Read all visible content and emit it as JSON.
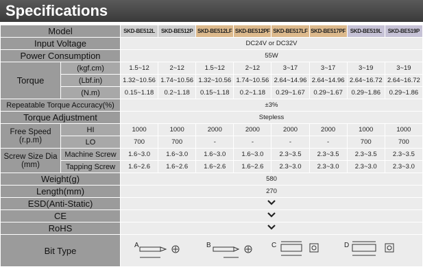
{
  "title": "Specifications",
  "table": {
    "model": {
      "label": "Model",
      "values": [
        "SKD-BE512L",
        "SKD-BE512P",
        "SKD-BE512LF",
        "SKD-BE512PF",
        "SKD-BE517LF",
        "SKD-BE517PF",
        "SKD-BE519L",
        "SKD-BE519P"
      ]
    },
    "input_voltage": {
      "label": "Input Voltage",
      "value": "DC24V  or  DC32V"
    },
    "power": {
      "label": "Power Consumption",
      "value": "55W"
    },
    "torque": {
      "label": "Torque",
      "rows": [
        {
          "unit": "(kgf.cm)",
          "values": [
            "1.5~12",
            "2~12",
            "1.5~12",
            "2~12",
            "3~17",
            "3~17",
            "3~19",
            "3~19"
          ]
        },
        {
          "unit": "(Lbf.in)",
          "values": [
            "1.32~10.56",
            "1.74~10.56",
            "1.32~10.56",
            "1.74~10.56",
            "2.64~14.96",
            "2.64~14.96",
            "2.64~16.72",
            "2.64~16.72"
          ]
        },
        {
          "unit": "(N.m)",
          "values": [
            "0.15~1.18",
            "0.2~1.18",
            "0.15~1.18",
            "0.2~1.18",
            "0.29~1.67",
            "0.29~1.67",
            "0.29~1.86",
            "0.29~1.86"
          ]
        }
      ]
    },
    "repeatable": {
      "label": "Repeatable Torque Accuracy(%)",
      "value": "±3%"
    },
    "adjustment": {
      "label": "Torque Adjustment",
      "value": "Stepless"
    },
    "free_speed": {
      "label": "Free Speed",
      "unit": "(r.p.m)",
      "rows": [
        {
          "name": "HI",
          "values": [
            1000,
            1000,
            2000,
            2000,
            2000,
            2000,
            1000,
            1000
          ]
        },
        {
          "name": "LO",
          "values": [
            700,
            700,
            "-",
            "-",
            "-",
            "-",
            700,
            700
          ]
        }
      ]
    },
    "screw": {
      "label": "Screw Size Dia",
      "unit": "(mm)",
      "rows": [
        {
          "name": "Machine Screw",
          "values": [
            "1.6~3.0",
            "1.6~3.0",
            "1.6~3.0",
            "1.6~3.0",
            "2.3~3.5",
            "2.3~3.5",
            "2.3~3.5",
            "2.3~3.5"
          ]
        },
        {
          "name": "Tapping Screw",
          "values": [
            "1.6~2.6",
            "1.6~2.6",
            "1.6~2.6",
            "1.6~2.6",
            "2.3~3.0",
            "2.3~3.0",
            "2.3~3.0",
            "2.3~3.0"
          ]
        }
      ]
    },
    "weight": {
      "label": "Weight(g)",
      "value": "580"
    },
    "length": {
      "label": "Length(mm)",
      "value": "270"
    },
    "esd": {
      "label": "ESD(Anti-Static)"
    },
    "ce": {
      "label": "CE"
    },
    "rohs": {
      "label": "RoHS"
    },
    "bit_type": {
      "label": "Bit Type",
      "types": [
        "A",
        "B",
        "C",
        "D"
      ]
    }
  }
}
